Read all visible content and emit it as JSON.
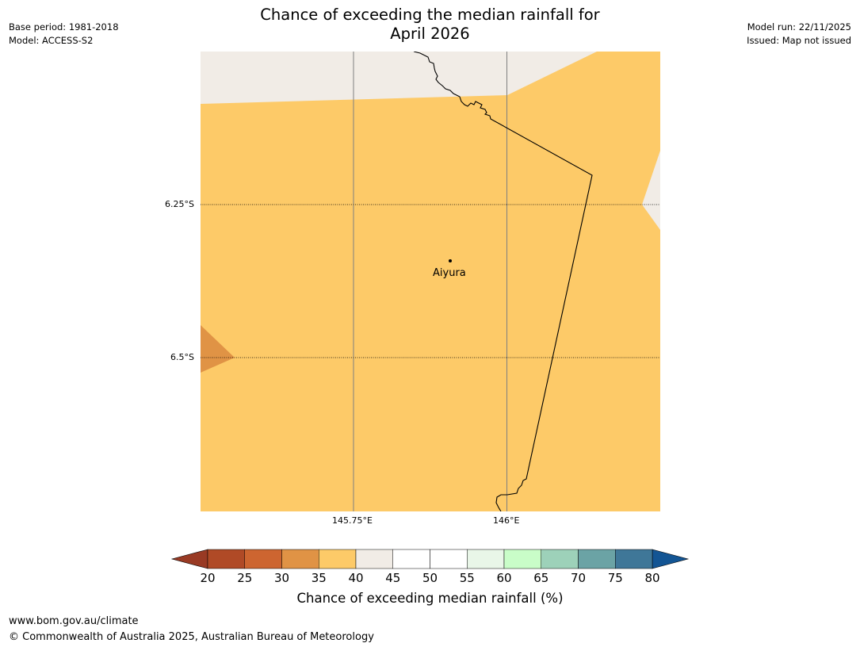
{
  "title": {
    "line1": "Chance of exceeding the median rainfall for",
    "line2": "April 2026"
  },
  "meta_left": {
    "base_period": "Base period: 1981-2018",
    "model": "Model: ACCESS-S2"
  },
  "meta_right": {
    "model_run": "Model run: 22/11/2025",
    "issued": "Issued: Map not issued"
  },
  "map": {
    "latitude_labels": [
      "6.25°S",
      "6.5°S"
    ],
    "longitude_labels": [
      "145.75°E",
      "146°E"
    ],
    "place": "Aiyura",
    "region_colors": {
      "probability_35_40": "#fdca68",
      "probability_40_45": "#f1ece6",
      "probability_30_35": "#e09345"
    }
  },
  "colorbar": {
    "ticks": [
      "20",
      "25",
      "30",
      "35",
      "40",
      "45",
      "50",
      "55",
      "60",
      "65",
      "70",
      "75",
      "80"
    ],
    "colors": [
      "#b04a26",
      "#cd6530",
      "#e09345",
      "#fdca68",
      "#f1ece6",
      "#ffffff",
      "#ffffff",
      "#e9f6e8",
      "#c9fdc8",
      "#9dd1b9",
      "#6ba3a5",
      "#3f7798"
    ],
    "under_color": "#993a24",
    "over_color": "#135594",
    "title": "Chance of exceeding median rainfall (%)"
  },
  "footer": {
    "url": "www.bom.gov.au/climate",
    "copyright": "© Commonwealth of Australia 2025, Australian Bureau of Meteorology"
  }
}
